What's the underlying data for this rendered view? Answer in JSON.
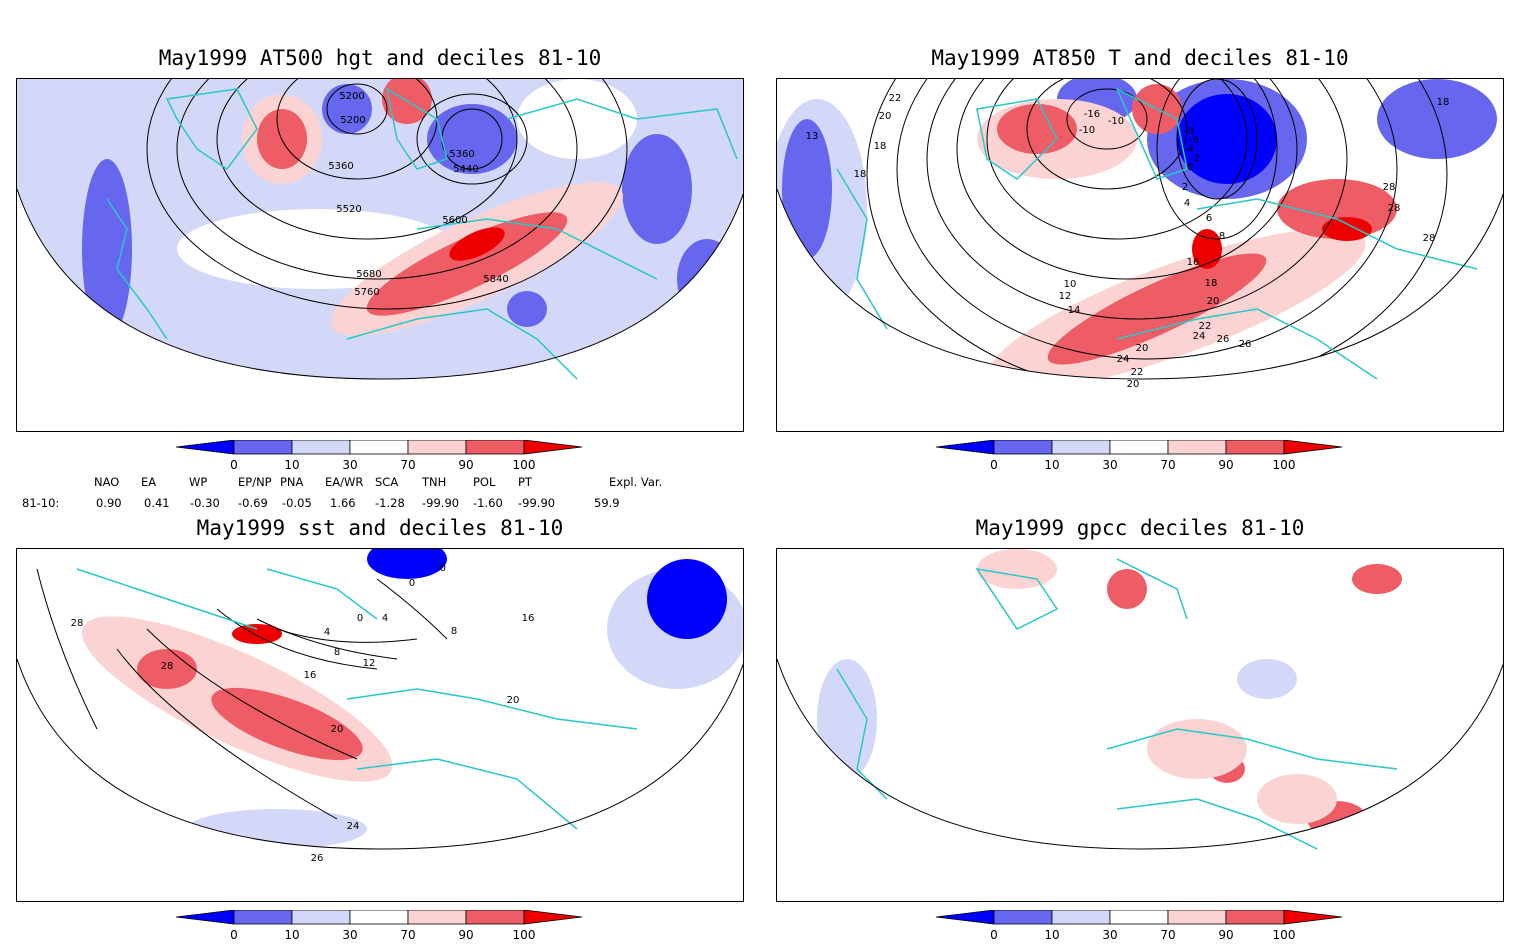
{
  "panels": {
    "p1": {
      "title": "May1999 AT500 hgt and deciles 81-10",
      "contour_labels": [
        "5200",
        "5200",
        "5360",
        "5360",
        "5440",
        "5520",
        "5600",
        "5680",
        "5760",
        "5840"
      ]
    },
    "p2": {
      "title": "May1999 AT850 T and deciles 81-10",
      "contour_labels": [
        "22",
        "20",
        "18",
        "18",
        "13",
        "-16",
        "-10",
        "-10",
        "-8",
        "-6",
        "-4",
        "-2",
        "0",
        "2",
        "4",
        "6",
        "8",
        "10",
        "12",
        "14",
        "16",
        "18",
        "20",
        "22",
        "24",
        "26",
        "28",
        "28",
        "28",
        "18",
        "24",
        "22",
        "20",
        "20",
        "26"
      ]
    },
    "p3": {
      "title": "May1999 sst and deciles 81-10",
      "contour_labels": [
        "28",
        "28",
        "20",
        "24",
        "26",
        "12",
        "16",
        "8",
        "4",
        "0",
        "0",
        "8",
        "4",
        "16",
        "20",
        "-0"
      ]
    },
    "p4": {
      "title": "May1999 gpcc deciles 81-10",
      "contour_labels": []
    }
  },
  "colorbar": {
    "ticks": [
      "0",
      "10",
      "30",
      "70",
      "90",
      "100"
    ],
    "colors": {
      "very_low": "#0000ff",
      "low": "#6666ee",
      "below": "#d4d8f8",
      "above": "#fbd3d3",
      "high": "#ee5c66",
      "very_high": "#ee0000"
    }
  },
  "teleconnection": {
    "headers": [
      "NAO",
      "EA",
      "WP",
      "EP/NP",
      "PNA",
      "EA/WR",
      "SCA",
      "TNH",
      "POL",
      "PT",
      "Expl. Var."
    ],
    "row_label": "81-10:",
    "values": [
      "0.90",
      "0.41",
      "-0.30",
      "-0.69",
      "-0.05",
      "1.66",
      "-1.28",
      "-99.90",
      "-1.60",
      "-99.90",
      "59.9"
    ]
  },
  "map_colors": {
    "coast": "#28c8c8",
    "grid": "#909090"
  }
}
